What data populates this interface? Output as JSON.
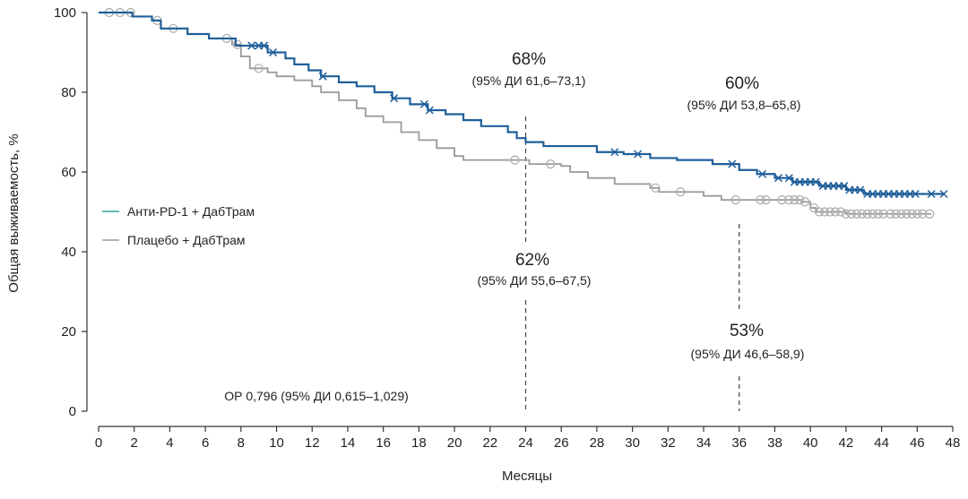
{
  "chart_data": {
    "type": "line",
    "subtype": "kaplan-meier",
    "xlabel": "Месяцы",
    "ylabel": "Общая выживаемость, %",
    "xlim": [
      0,
      48
    ],
    "ylim": [
      0,
      100
    ],
    "xticks": [
      0,
      2,
      4,
      6,
      8,
      10,
      12,
      14,
      16,
      18,
      20,
      22,
      24,
      26,
      28,
      30,
      32,
      34,
      36,
      38,
      40,
      42,
      44,
      46,
      48
    ],
    "yticks": [
      0,
      20,
      40,
      60,
      80,
      100
    ],
    "grid": false,
    "legend_position": "left-middle",
    "series": [
      {
        "name": "Анти-PD-1 + ДабТрам",
        "color": "#1f5f9a",
        "legend_color": "#2aa6a0",
        "censor_marker": "x",
        "steps": [
          [
            0,
            100
          ],
          [
            1.9,
            99
          ],
          [
            3,
            98
          ],
          [
            3.5,
            96
          ],
          [
            5,
            94.6
          ],
          [
            6.2,
            93.5
          ],
          [
            7.7,
            91.7
          ],
          [
            9.5,
            90
          ],
          [
            10.5,
            88.5
          ],
          [
            11,
            87
          ],
          [
            11.8,
            85.5
          ],
          [
            12.5,
            84
          ],
          [
            13.5,
            82.5
          ],
          [
            14.5,
            81.5
          ],
          [
            15.5,
            80
          ],
          [
            16.5,
            78.5
          ],
          [
            17.5,
            77
          ],
          [
            18.5,
            75.5
          ],
          [
            19.5,
            74.5
          ],
          [
            20.5,
            73
          ],
          [
            21.5,
            71.5
          ],
          [
            23,
            70
          ],
          [
            23.5,
            68.5
          ],
          [
            24,
            67.5
          ],
          [
            25,
            66.5
          ],
          [
            28,
            65
          ],
          [
            29.5,
            64.5
          ],
          [
            31,
            63.5
          ],
          [
            32.5,
            63
          ],
          [
            34.5,
            62
          ],
          [
            36,
            60.5
          ],
          [
            37,
            59.5
          ],
          [
            38,
            58.5
          ],
          [
            39,
            57.5
          ],
          [
            40.5,
            56.5
          ],
          [
            42,
            55.5
          ],
          [
            43,
            54.5
          ],
          [
            47.5,
            54.5
          ]
        ],
        "censored": [
          8.6,
          9.0,
          9.3,
          9.8,
          12.6,
          16.6,
          18.3,
          18.6,
          29.0,
          30.3,
          35.6,
          37.3,
          38.2,
          38.8,
          39.1,
          39.4,
          39.7,
          40.0,
          40.3,
          40.7,
          41.0,
          41.3,
          41.6,
          41.9,
          42.2,
          42.5,
          42.8,
          43.2,
          43.5,
          43.8,
          44.1,
          44.4,
          44.7,
          45.0,
          45.3,
          45.6,
          45.9,
          46.8,
          47.5
        ]
      },
      {
        "name": "Плацебо + ДабТрам",
        "color": "#9a9a9a",
        "legend_color": "#9a9a9a",
        "censor_marker": "o",
        "steps": [
          [
            0,
            100
          ],
          [
            1.9,
            99
          ],
          [
            3,
            98
          ],
          [
            3.5,
            96
          ],
          [
            5,
            94.6
          ],
          [
            6.2,
            93.5
          ],
          [
            7.5,
            92
          ],
          [
            8,
            89
          ],
          [
            8.5,
            86
          ],
          [
            9.5,
            85
          ],
          [
            10,
            84
          ],
          [
            11,
            83
          ],
          [
            12,
            81.5
          ],
          [
            12.5,
            80
          ],
          [
            13.5,
            78
          ],
          [
            14.5,
            76
          ],
          [
            15,
            74
          ],
          [
            16,
            72.5
          ],
          [
            17,
            70
          ],
          [
            18,
            68
          ],
          [
            19,
            66
          ],
          [
            20,
            64
          ],
          [
            20.5,
            63
          ],
          [
            24,
            63
          ],
          [
            24.2,
            62
          ],
          [
            26,
            61.5
          ],
          [
            26.5,
            60
          ],
          [
            27.5,
            58.5
          ],
          [
            29,
            57
          ],
          [
            31,
            56
          ],
          [
            31.5,
            55
          ],
          [
            34,
            54
          ],
          [
            35,
            53
          ],
          [
            38,
            53
          ],
          [
            39.5,
            52.5
          ],
          [
            40,
            51
          ],
          [
            40.3,
            50
          ],
          [
            42,
            49.5
          ],
          [
            46.8,
            49.5
          ]
        ],
        "censored": [
          0.6,
          1.2,
          1.8,
          3.3,
          4.2,
          7.2,
          7.8,
          9.0,
          23.4,
          25.4,
          31.3,
          32.7,
          35.8,
          37.2,
          37.5,
          38.4,
          38.8,
          39.1,
          39.4,
          39.7,
          40.2,
          40.5,
          40.8,
          41.1,
          41.4,
          41.7,
          42.0,
          42.3,
          42.6,
          42.9,
          43.2,
          43.5,
          43.8,
          44.1,
          44.5,
          44.8,
          45.1,
          45.4,
          45.7,
          46.0,
          46.3,
          46.7
        ]
      }
    ],
    "annotations": [
      {
        "month": 24,
        "value": "68%",
        "ci": "(95% ДИ 61,6–73,1)",
        "series": 0
      },
      {
        "month": 36,
        "value": "60%",
        "ci": "(95% ДИ 53,8–65,8)",
        "series": 0
      },
      {
        "month": 24,
        "value": "62%",
        "ci": "(95% ДИ 55,6–67,5)",
        "series": 1
      },
      {
        "month": 36,
        "value": "53%",
        "ci": "(95% ДИ 46,6–58,9)",
        "series": 1
      }
    ],
    "hr_text": "ОР 0,796 (95% ДИ 0,615–1,029)"
  }
}
